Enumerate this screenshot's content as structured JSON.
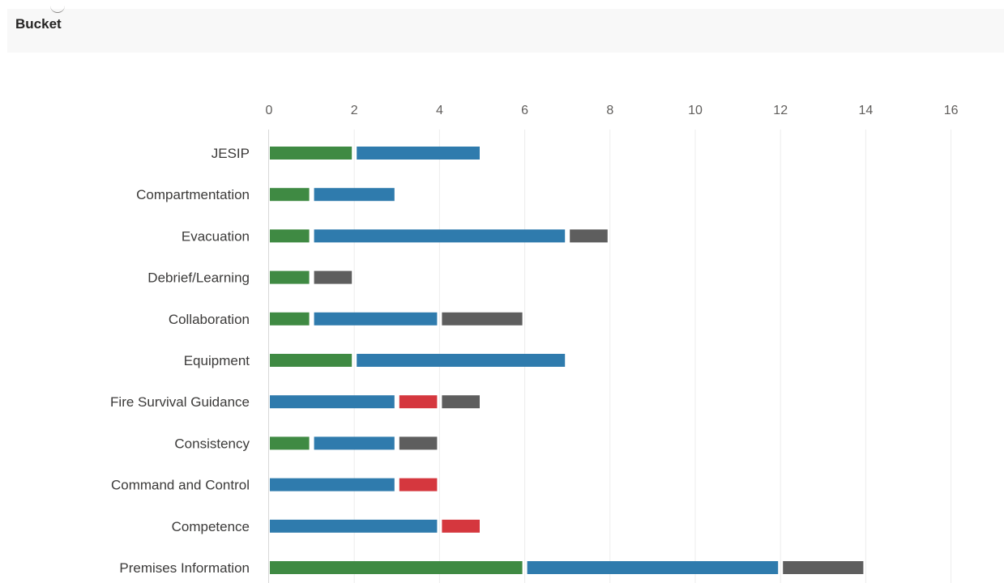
{
  "header": {
    "title": "Bucket"
  },
  "colors": {
    "green": "#3f8a43",
    "blue": "#2f7bad",
    "red": "#d5373e",
    "gray": "#5e5e5e",
    "grid": "#ececec",
    "header_bg": "#f8f8f8"
  },
  "chart_data": {
    "type": "bar",
    "orientation": "horizontal",
    "stacked": true,
    "xlim": [
      0,
      16
    ],
    "x_ticks": [
      "0",
      "2",
      "4",
      "6",
      "8",
      "10",
      "12",
      "14",
      "16"
    ],
    "grid": true,
    "legend": "none",
    "categories": [
      "JESIP",
      "Compartmentation",
      "Evacuation",
      "Debrief/Learning",
      "Collaboration",
      "Equipment",
      "Fire Survival Guidance",
      "Consistency",
      "Command and Control",
      "Competence",
      "Premises Information"
    ],
    "series": [
      {
        "color": "#3f8a43",
        "values": [
          2,
          1,
          1,
          1,
          1,
          2,
          0,
          1,
          0,
          0,
          6
        ]
      },
      {
        "color": "#2f7bad",
        "values": [
          3,
          2,
          6,
          0,
          3,
          5,
          3,
          2,
          3,
          4,
          6
        ]
      },
      {
        "color": "#d5373e",
        "values": [
          0,
          0,
          0,
          0,
          0,
          0,
          1,
          0,
          1,
          1,
          0
        ]
      },
      {
        "color": "#5e5e5e",
        "values": [
          0,
          0,
          1,
          1,
          2,
          0,
          1,
          1,
          0,
          0,
          2
        ]
      }
    ]
  }
}
